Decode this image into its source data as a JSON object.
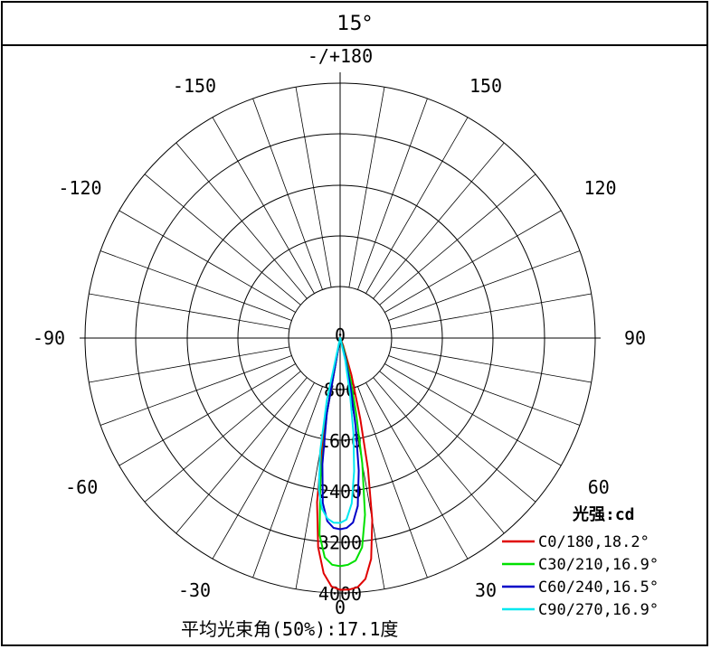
{
  "header": {
    "title": "15°"
  },
  "chart_data": {
    "type": "polar",
    "title": "15°",
    "angle_unit": "degrees",
    "angle_ticks": [
      "-/+180",
      "150",
      "120",
      "90",
      "60",
      "30",
      "0",
      "-30",
      "-60",
      "-90",
      "-120",
      "-150"
    ],
    "radial_ticks": [
      "0",
      "800",
      "1600",
      "2400",
      "3200",
      "4000"
    ],
    "radial_max": 4000,
    "grid": true,
    "legend_title": "光强:cd",
    "legend_placement": "bottom-right",
    "series": [
      {
        "name": "C0/180,18.2°",
        "color": "#e00000",
        "points": [
          [
            -10,
            1500
          ],
          [
            -8,
            2600
          ],
          [
            -6,
            3300
          ],
          [
            -4,
            3700
          ],
          [
            -2,
            3900
          ],
          [
            0,
            3950
          ],
          [
            2,
            3950
          ],
          [
            4,
            3920
          ],
          [
            6,
            3800
          ],
          [
            8,
            3500
          ],
          [
            10,
            2900
          ],
          [
            12,
            2100
          ],
          [
            14,
            1300
          ],
          [
            17,
            600
          ],
          [
            22,
            120
          ]
        ]
      },
      {
        "name": "C30/210,16.9°",
        "color": "#00e000",
        "points": [
          [
            -10,
            1200
          ],
          [
            -8,
            2200
          ],
          [
            -6,
            3100
          ],
          [
            -4,
            3450
          ],
          [
            -2,
            3560
          ],
          [
            0,
            3580
          ],
          [
            2,
            3560
          ],
          [
            4,
            3500
          ],
          [
            6,
            3300
          ],
          [
            8,
            2800
          ],
          [
            10,
            2000
          ],
          [
            12,
            1200
          ],
          [
            14,
            700
          ],
          [
            18,
            200
          ]
        ]
      },
      {
        "name": "C60/240,16.5°",
        "color": "#0000c8",
        "points": [
          [
            -10,
            1200
          ],
          [
            -8,
            2000
          ],
          [
            -6,
            2600
          ],
          [
            -4,
            2880
          ],
          [
            -2,
            2980
          ],
          [
            0,
            3000
          ],
          [
            2,
            2980
          ],
          [
            4,
            2900
          ],
          [
            6,
            2650
          ],
          [
            8,
            2100
          ],
          [
            10,
            1400
          ],
          [
            12,
            800
          ],
          [
            15,
            300
          ]
        ]
      },
      {
        "name": "C90/270,16.9°",
        "color": "#00e8f0",
        "points": [
          [
            -12,
            1000
          ],
          [
            -10,
            1800
          ],
          [
            -8,
            2400
          ],
          [
            -6,
            2700
          ],
          [
            -4,
            2840
          ],
          [
            -2,
            2900
          ],
          [
            0,
            2900
          ],
          [
            2,
            2850
          ],
          [
            4,
            2600
          ],
          [
            6,
            2100
          ],
          [
            8,
            1500
          ],
          [
            10,
            900
          ],
          [
            13,
            350
          ]
        ]
      }
    ],
    "footer": "平均光束角(50%):17.1度"
  }
}
